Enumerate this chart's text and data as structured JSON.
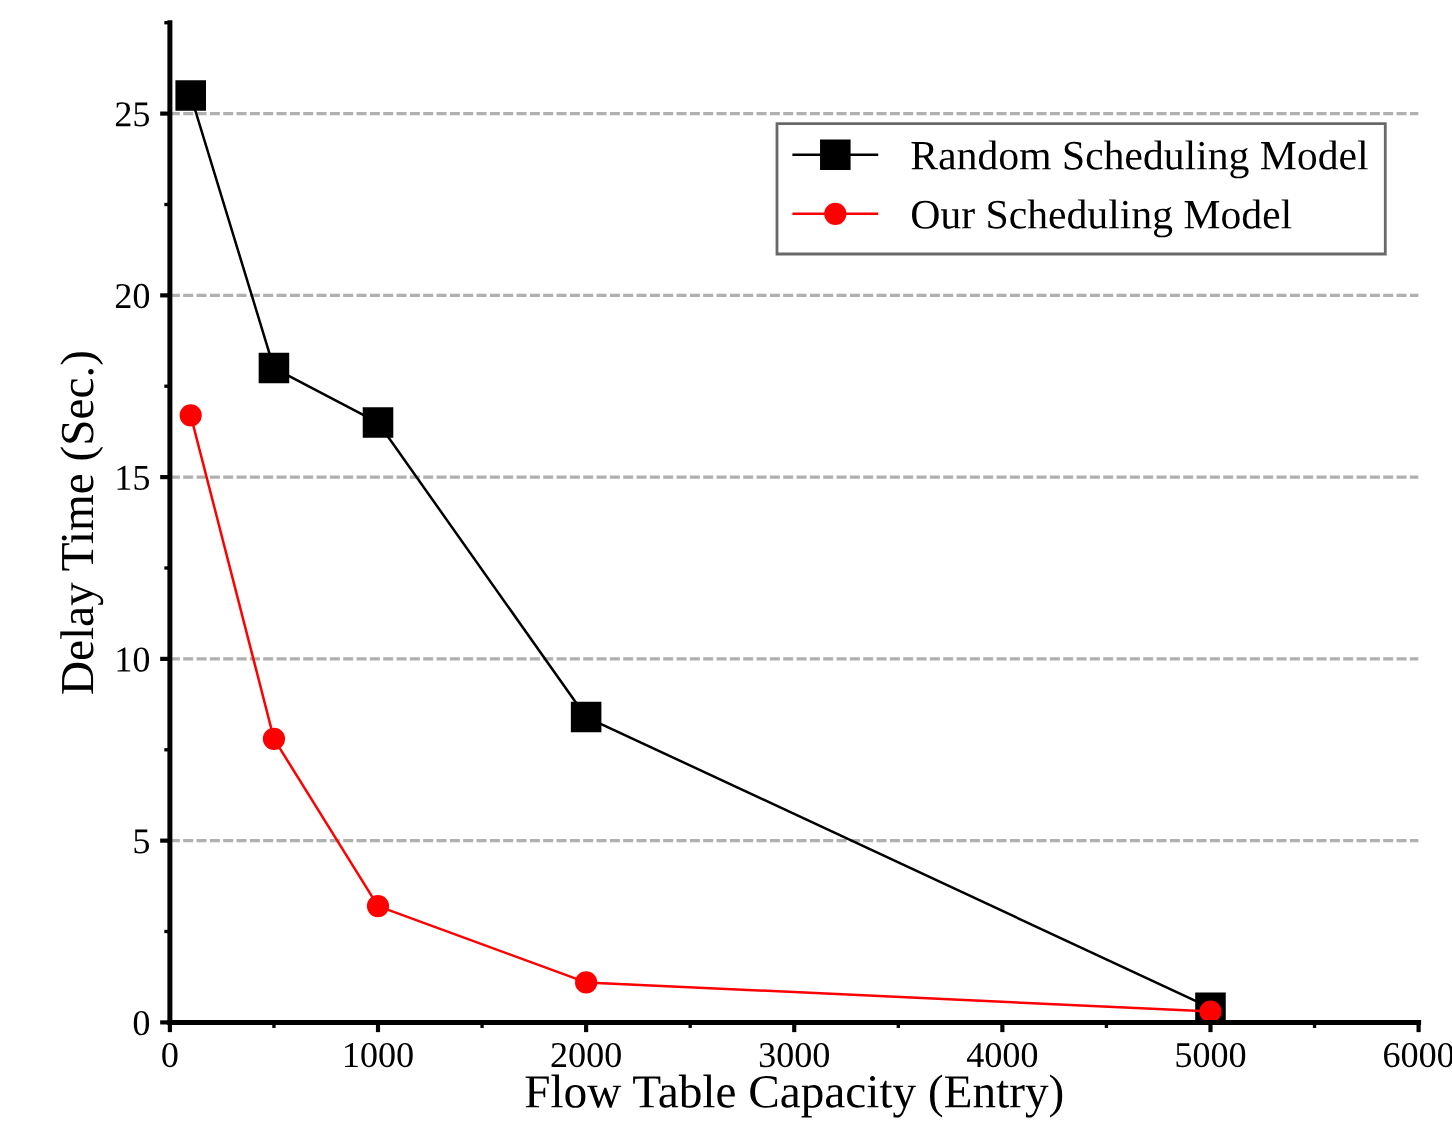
{
  "chart_data": {
    "type": "line",
    "xlabel": "Flow Table Capacity (Entry)",
    "ylabel": "Delay Time (Sec.)",
    "x": [
      100,
      500,
      1000,
      2000,
      5000
    ],
    "series": [
      {
        "name": "Random Scheduling Model",
        "color": "#000000",
        "marker": "square",
        "values": [
          25.5,
          18.0,
          16.5,
          8.4,
          0.4
        ]
      },
      {
        "name": "Our Scheduling Model",
        "color": "#ff0000",
        "marker": "circle",
        "values": [
          16.7,
          7.8,
          3.2,
          1.1,
          0.3
        ]
      }
    ],
    "xlim": [
      0,
      6000
    ],
    "xticks": [
      0,
      1000,
      2000,
      3000,
      4000,
      5000,
      6000
    ],
    "ylim": [
      0,
      27.5
    ],
    "yticks": [
      0,
      5,
      10,
      15,
      20,
      25
    ],
    "grid": "y",
    "legend": "top right",
    "line_style": "solid"
  }
}
